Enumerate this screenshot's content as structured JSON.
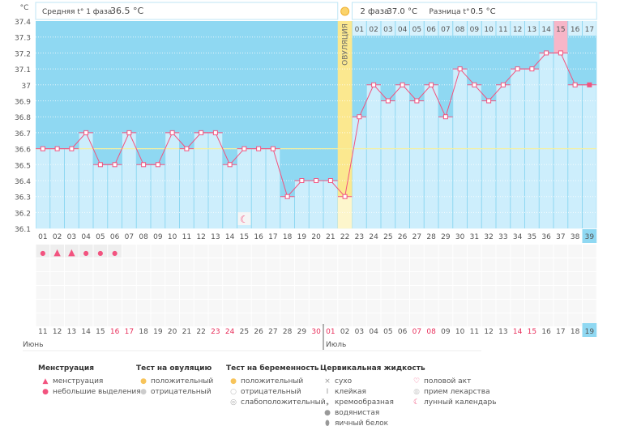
{
  "header": {
    "phase1_label": "Средняя t° 1 фаза",
    "phase1_value": "36.5 °C",
    "phase2_label": "2 фаза",
    "phase2_value": "37.0 °C",
    "diff_label": "Разница t°",
    "diff_value": "0.5 °C",
    "ovulation_label": "ОВУЛЯЦИЯ",
    "unit": "°C"
  },
  "chart_data": {
    "type": "line",
    "ylabel": "°C",
    "ylim": [
      36.1,
      37.4
    ],
    "yticks": [
      "37.4",
      "37.3",
      "37.2",
      "37.1",
      "37",
      "36.9",
      "36.8",
      "36.7",
      "36.6",
      "36.5",
      "36.4",
      "36.3",
      "36.2",
      "36.1"
    ],
    "coverline": 36.6,
    "ovulation_day": 22,
    "cycle_days": [
      "01",
      "02",
      "03",
      "04",
      "05",
      "06",
      "07",
      "08",
      "09",
      "10",
      "11",
      "12",
      "13",
      "14",
      "15",
      "16",
      "17",
      "18",
      "19",
      "20",
      "21",
      "22",
      "23",
      "24",
      "25",
      "26",
      "27",
      "28",
      "29",
      "30",
      "31",
      "32",
      "33",
      "34",
      "35",
      "36",
      "37",
      "38",
      "39"
    ],
    "temperatures": [
      36.6,
      36.6,
      36.6,
      36.7,
      36.5,
      36.5,
      36.7,
      36.5,
      36.5,
      36.7,
      36.6,
      36.7,
      36.7,
      36.5,
      36.6,
      36.6,
      36.6,
      36.3,
      36.4,
      36.4,
      36.4,
      36.3,
      36.8,
      37.0,
      36.9,
      37.0,
      36.9,
      37.0,
      36.8,
      37.1,
      37.0,
      36.9,
      37.0,
      37.1,
      37.1,
      37.2,
      37.2,
      37.0,
      37.0
    ],
    "luteal_days": [
      "01",
      "02",
      "03",
      "04",
      "05",
      "06",
      "07",
      "08",
      "09",
      "10",
      "11",
      "12",
      "13",
      "14",
      "15",
      "16",
      "17"
    ],
    "highlighted_luteal_day": "15",
    "current_day": "39",
    "dates": [
      "11",
      "12",
      "13",
      "14",
      "15",
      "16",
      "17",
      "18",
      "19",
      "20",
      "21",
      "22",
      "23",
      "24",
      "25",
      "26",
      "27",
      "28",
      "29",
      "30",
      "01",
      "02",
      "03",
      "04",
      "05",
      "06",
      "07",
      "08",
      "09",
      "10",
      "11",
      "12",
      "13",
      "14",
      "15",
      "16",
      "17",
      "18",
      "19"
    ],
    "weekend_day_indices": [
      5,
      6,
      12,
      13,
      19,
      20,
      26,
      27,
      33,
      34
    ],
    "months": [
      {
        "label": "Июнь",
        "start_day": 1
      },
      {
        "label": "Июль",
        "start_day": 21
      }
    ],
    "menstruation": [
      {
        "day": 1,
        "type": "small"
      },
      {
        "day": 2,
        "type": "heavy"
      },
      {
        "day": 3,
        "type": "heavy"
      },
      {
        "day": 4,
        "type": "small"
      },
      {
        "day": 5,
        "type": "small"
      },
      {
        "day": 6,
        "type": "small"
      }
    ],
    "moon_day": 15
  },
  "colors": {
    "above": "#8fd8f2",
    "below": "#cdeefc",
    "line": "#f2537f",
    "ovulation": "#fbe88f",
    "highlight": "#f7b6c8",
    "weekend": "#e8305c"
  },
  "legend": {
    "groups": [
      {
        "title": "Менструация",
        "items": [
          {
            "icon": "menstruation-icon",
            "label": "менструация"
          },
          {
            "icon": "spotting-icon",
            "label": "небольшие выделения"
          }
        ]
      },
      {
        "title": "Тест на овуляцию",
        "items": [
          {
            "icon": "ovulation-test-positive-icon",
            "label": "положительный"
          },
          {
            "icon": "ovulation-test-negative-icon",
            "label": "отрицательный"
          }
        ]
      },
      {
        "title": "Тест на беременность",
        "items": [
          {
            "icon": "pregnancy-test-positive-icon",
            "label": "положительный"
          },
          {
            "icon": "pregnancy-test-negative-icon",
            "label": "отрицательный"
          },
          {
            "icon": "pregnancy-test-weak-icon",
            "label": "слабоположительный"
          }
        ]
      },
      {
        "title": "Цервикальная жидкость",
        "items": [
          {
            "icon": "dry-icon",
            "label": "сухо"
          },
          {
            "icon": "sticky-icon",
            "label": "клейкая"
          },
          {
            "icon": "creamy-icon",
            "label": "кремообразная"
          },
          {
            "icon": "watery-icon",
            "label": "водянистая"
          },
          {
            "icon": "egg-white-icon",
            "label": "яичный белок"
          }
        ]
      },
      {
        "title": "",
        "items": [
          {
            "icon": "heart-icon",
            "label": "половой акт"
          },
          {
            "icon": "pill-icon",
            "label": "прием лекарства"
          },
          {
            "icon": "moon-icon",
            "label": "лунный календарь"
          }
        ]
      }
    ]
  }
}
